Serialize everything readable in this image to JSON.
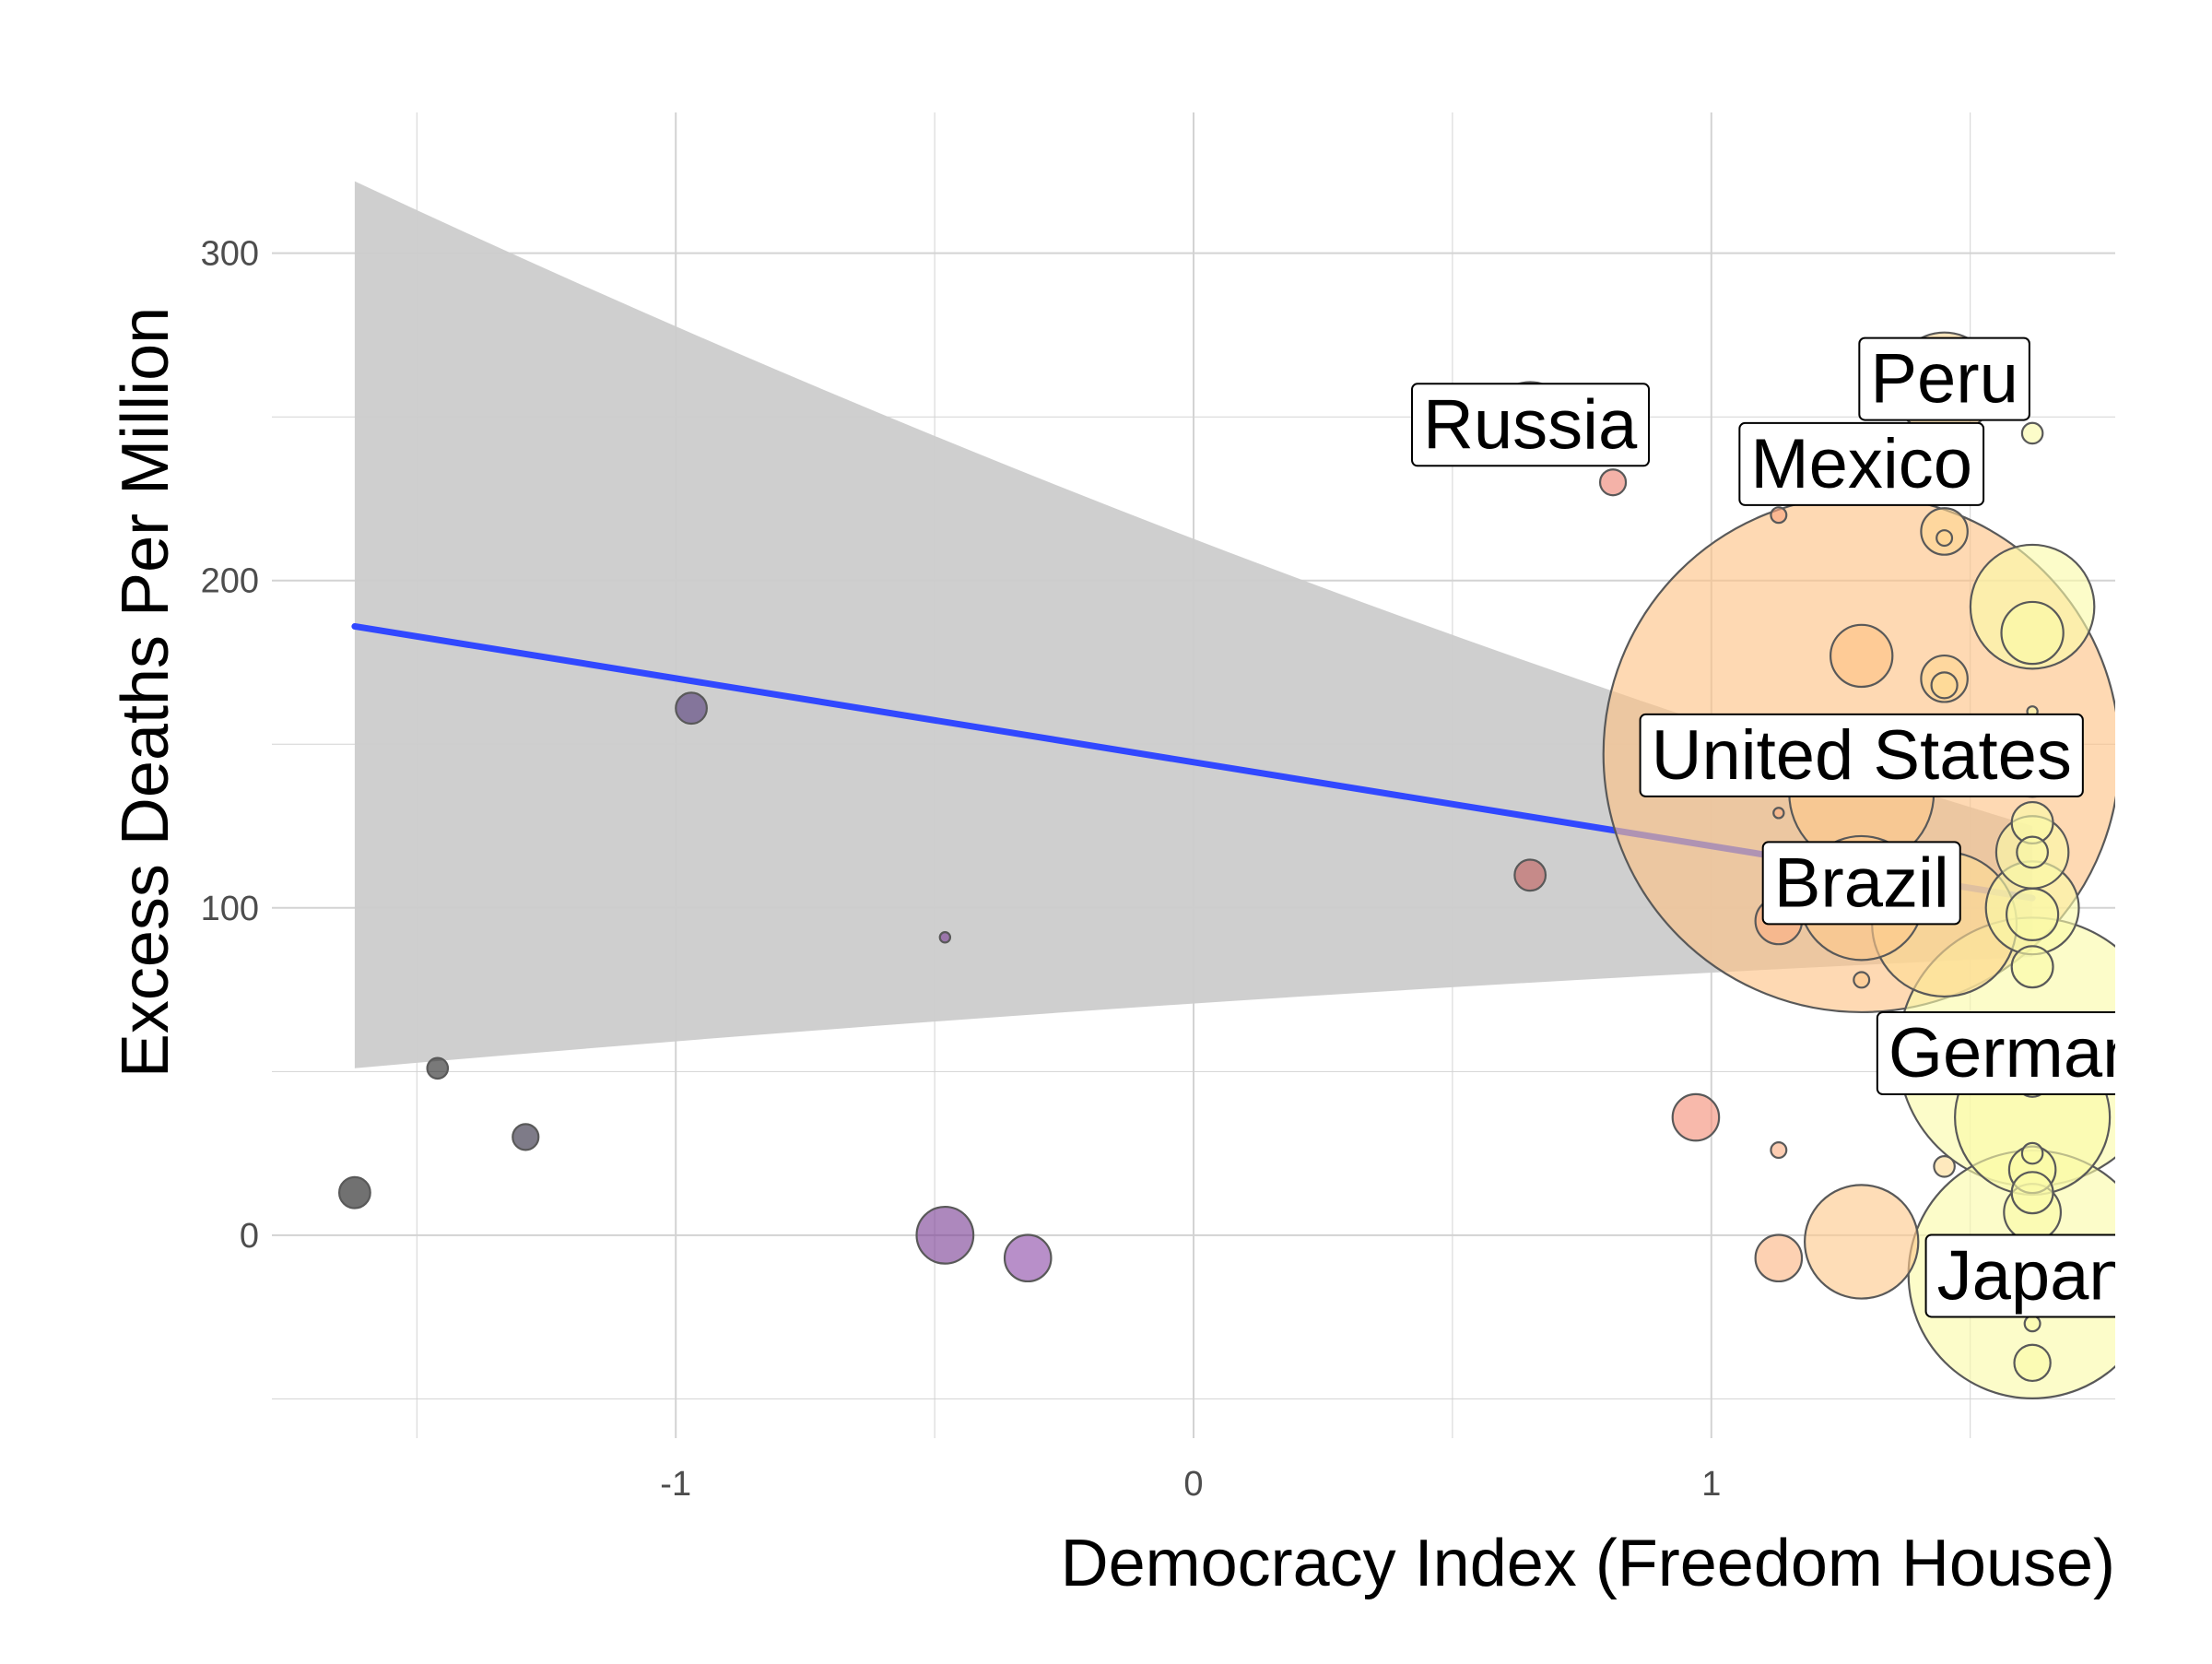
{
  "chart_data": {
    "type": "scatter",
    "title": "",
    "xlabel": "Democracy Index (Freedom House)",
    "ylabel": "Excess Deaths Per Million",
    "xlim": [
      -1.78,
      1.78
    ],
    "ylim": [
      -62,
      343
    ],
    "x_ticks": [
      -1,
      0,
      1
    ],
    "y_ticks": [
      0,
      100,
      200,
      300
    ],
    "grid": true,
    "legend": "none",
    "colors": {
      "regression_line": "#3148ff",
      "confidence_band": "#cccccc",
      "grid": "#d3d3d3",
      "point_stroke": "#595959",
      "label_border": "#000000",
      "label_fill": "#ffffff"
    },
    "color_scale": [
      "#1a1a1a",
      "#6a3d9a",
      "#e8746a",
      "#fec57a",
      "#fafaa8"
    ],
    "regression": {
      "x_start": -1.62,
      "x_end": 1.62,
      "y_start": 186,
      "y_end": 103,
      "band_at_start": [
        51,
        322
      ],
      "band_at_mid": [
        82,
        202
      ],
      "band_at_end": [
        85,
        125
      ]
    },
    "points": [
      {
        "x": -1.62,
        "y": 13,
        "size": 6,
        "color": "#1a1a1a"
      },
      {
        "x": -1.46,
        "y": 51,
        "size": 4,
        "color": "#262626"
      },
      {
        "x": -1.29,
        "y": 30,
        "size": 5,
        "color": "#2f2a3f"
      },
      {
        "x": -0.97,
        "y": 161,
        "size": 6,
        "color": "#553d7a"
      },
      {
        "x": -0.48,
        "y": 0,
        "size": 11,
        "color": "#7a3f95"
      },
      {
        "x": -0.48,
        "y": 91,
        "size": 2,
        "color": "#7a3f95"
      },
      {
        "x": -0.32,
        "y": -7,
        "size": 9,
        "color": "#8c4aa8"
      },
      {
        "x": 0.65,
        "y": 110,
        "size": 6,
        "color": "#c0605e"
      },
      {
        "x": 0.65,
        "y": 248,
        "size": 16,
        "color": "#e37168"
      },
      {
        "x": 0.81,
        "y": 230,
        "size": 5,
        "color": "#ee8372"
      },
      {
        "x": 0.97,
        "y": 36,
        "size": 9,
        "color": "#f48e78"
      },
      {
        "x": 1.13,
        "y": 220,
        "size": 3,
        "color": "#f9a37e"
      },
      {
        "x": 1.13,
        "y": 129,
        "size": 2,
        "color": "#fbae82"
      },
      {
        "x": 1.13,
        "y": 96,
        "size": 9,
        "color": "#fbae82"
      },
      {
        "x": 1.13,
        "y": 26,
        "size": 3,
        "color": "#fbae82"
      },
      {
        "x": 1.13,
        "y": -7,
        "size": 9,
        "color": "#fbb482"
      },
      {
        "x": 1.29,
        "y": 147,
        "size": 100,
        "color": "#fec284"
      },
      {
        "x": 1.29,
        "y": 177,
        "size": 12,
        "color": "#fec284"
      },
      {
        "x": 1.29,
        "y": 135,
        "size": 28,
        "color": "#fec88a"
      },
      {
        "x": 1.29,
        "y": 103,
        "size": 24,
        "color": "#fec88a"
      },
      {
        "x": 1.29,
        "y": 78,
        "size": 3,
        "color": "#fec88a"
      },
      {
        "x": 1.29,
        "y": -2,
        "size": 22,
        "color": "#fec88a"
      },
      {
        "x": 1.29,
        "y": 238,
        "size": 8,
        "color": "#fec88a"
      },
      {
        "x": 1.45,
        "y": 260,
        "size": 20,
        "color": "#fed591"
      },
      {
        "x": 1.45,
        "y": 215,
        "size": 9,
        "color": "#fed591"
      },
      {
        "x": 1.45,
        "y": 213,
        "size": 3,
        "color": "#fed591"
      },
      {
        "x": 1.45,
        "y": 170,
        "size": 9,
        "color": "#fed591"
      },
      {
        "x": 1.45,
        "y": 168,
        "size": 5,
        "color": "#fedb95"
      },
      {
        "x": 1.45,
        "y": 95,
        "size": 28,
        "color": "#fedb95"
      },
      {
        "x": 1.45,
        "y": 21,
        "size": 4,
        "color": "#fedb95"
      },
      {
        "x": 1.45,
        "y": 267,
        "size": 4,
        "color": "#fedb95"
      },
      {
        "x": 1.62,
        "y": 245,
        "size": 4,
        "color": "#fafaa8"
      },
      {
        "x": 1.62,
        "y": 192,
        "size": 24,
        "color": "#fafaa8"
      },
      {
        "x": 1.62,
        "y": 184,
        "size": 12,
        "color": "#fafaa8"
      },
      {
        "x": 1.62,
        "y": 160,
        "size": 2,
        "color": "#fafaa8"
      },
      {
        "x": 1.62,
        "y": 145,
        "size": 14,
        "color": "#fafaa8"
      },
      {
        "x": 1.62,
        "y": 126,
        "size": 8,
        "color": "#fafaa8"
      },
      {
        "x": 1.62,
        "y": 117,
        "size": 14,
        "color": "#fafaa8"
      },
      {
        "x": 1.62,
        "y": 117,
        "size": 6,
        "color": "#fafaa8"
      },
      {
        "x": 1.62,
        "y": 100,
        "size": 18,
        "color": "#fafaa8"
      },
      {
        "x": 1.62,
        "y": 98,
        "size": 10,
        "color": "#fafaa8"
      },
      {
        "x": 1.62,
        "y": 82,
        "size": 8,
        "color": "#fafaa8"
      },
      {
        "x": 1.62,
        "y": 56,
        "size": 52,
        "color": "#fafaa8"
      },
      {
        "x": 1.62,
        "y": 47,
        "size": 6,
        "color": "#fafaa8"
      },
      {
        "x": 1.62,
        "y": 36,
        "size": 30,
        "color": "#fafaa8"
      },
      {
        "x": 1.62,
        "y": 25,
        "size": 4,
        "color": "#fafaa8"
      },
      {
        "x": 1.62,
        "y": 20,
        "size": 9,
        "color": "#fafaa8"
      },
      {
        "x": 1.62,
        "y": 13,
        "size": 8,
        "color": "#fafaa8"
      },
      {
        "x": 1.62,
        "y": 7,
        "size": 11,
        "color": "#fafaa8"
      },
      {
        "x": 1.62,
        "y": -12,
        "size": 48,
        "color": "#fafaa8"
      },
      {
        "x": 1.62,
        "y": -27,
        "size": 3,
        "color": "#fafaa8"
      },
      {
        "x": 1.62,
        "y": -39,
        "size": 7,
        "color": "#fafaa8"
      }
    ],
    "labels": [
      {
        "text": "Russia",
        "x": 0.65,
        "y": 248,
        "anchor": "middle",
        "clip": false
      },
      {
        "text": "Peru",
        "x": 1.45,
        "y": 262,
        "anchor": "middle",
        "clip": false
      },
      {
        "text": "Mexico",
        "x": 1.29,
        "y": 236,
        "anchor": "middle",
        "clip": false
      },
      {
        "text": "United States",
        "x": 1.29,
        "y": 147,
        "anchor": "middle",
        "clip": false
      },
      {
        "text": "Brazil",
        "x": 1.29,
        "y": 108,
        "anchor": "middle",
        "clip": false
      },
      {
        "text": "Germany",
        "x": 1.62,
        "y": 56,
        "anchor": "middle",
        "clip": true
      },
      {
        "text": "Japan",
        "x": 1.62,
        "y": -12,
        "anchor": "middle",
        "clip": true
      }
    ]
  }
}
